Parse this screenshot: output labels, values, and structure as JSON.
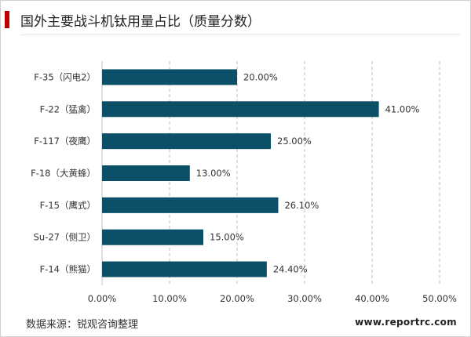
{
  "chart_data": {
    "type": "bar",
    "orientation": "horizontal",
    "title": "国外主要战斗机钛用量占比（质量分数）",
    "categories": [
      "F-35（闪电2）",
      "F-22（猛禽）",
      "F-117（夜鹰）",
      "F-18（大黄蜂）",
      "F-15（鹰式）",
      "Su-27（侧卫）",
      "F-14（熊猫）"
    ],
    "values": [
      20.0,
      41.0,
      25.0,
      13.0,
      26.1,
      15.0,
      24.4
    ],
    "value_labels": [
      "20.00%",
      "41.00%",
      "25.00%",
      "13.00%",
      "26.10%",
      "15.00%",
      "24.40%"
    ],
    "x_ticks": [
      0,
      10,
      20,
      30,
      40,
      50
    ],
    "x_tick_labels": [
      "0.00%",
      "10.00%",
      "20.00%",
      "30.00%",
      "40.00%",
      "50.00%"
    ],
    "xlim": [
      0,
      50
    ],
    "grid": "vertical-dashed",
    "bar_color": "#0c4f68",
    "accent_color": "#c00000"
  },
  "footer": {
    "source": "数据来源：锐观咨询整理",
    "website": "www.reportrc.com"
  }
}
